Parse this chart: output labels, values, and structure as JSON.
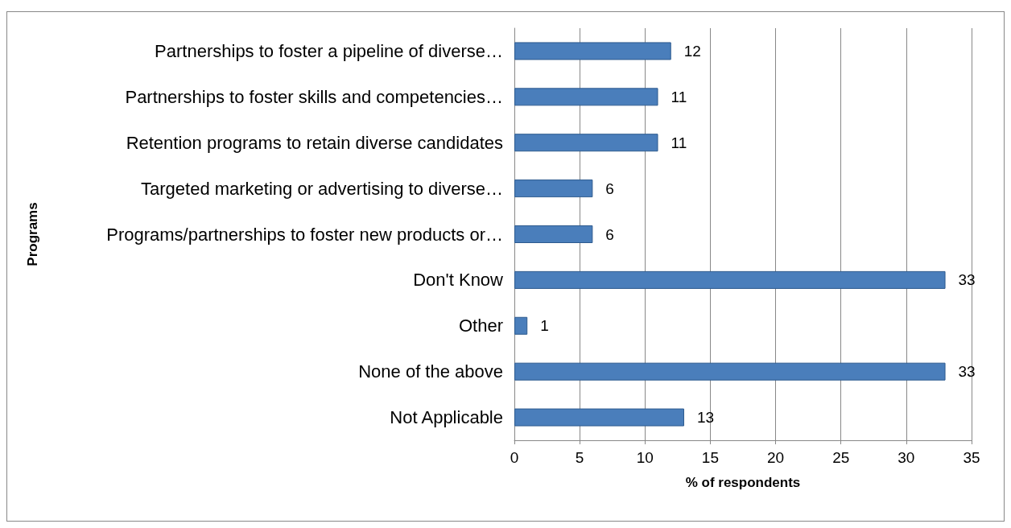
{
  "chart_data": {
    "type": "bar",
    "orientation": "horizontal",
    "xlabel": "% of respondents",
    "ylabel": "Programs",
    "categories": [
      "Partnerships to foster a pipeline of diverse…",
      "Partnerships to foster skills and competencies…",
      "Retention programs to retain diverse candidates",
      "Targeted marketing or advertising to diverse…",
      "Programs/partnerships to foster new products or…",
      "Don't Know",
      "Other",
      "None of the above",
      "Not Applicable"
    ],
    "values": [
      12,
      11,
      11,
      6,
      6,
      33,
      1,
      33,
      13
    ],
    "color": "#4a7ebb",
    "xlim": [
      0,
      35
    ],
    "xticks": [
      0,
      5,
      10,
      15,
      20,
      25,
      30,
      35
    ],
    "grid": "x",
    "data_labels": true
  }
}
